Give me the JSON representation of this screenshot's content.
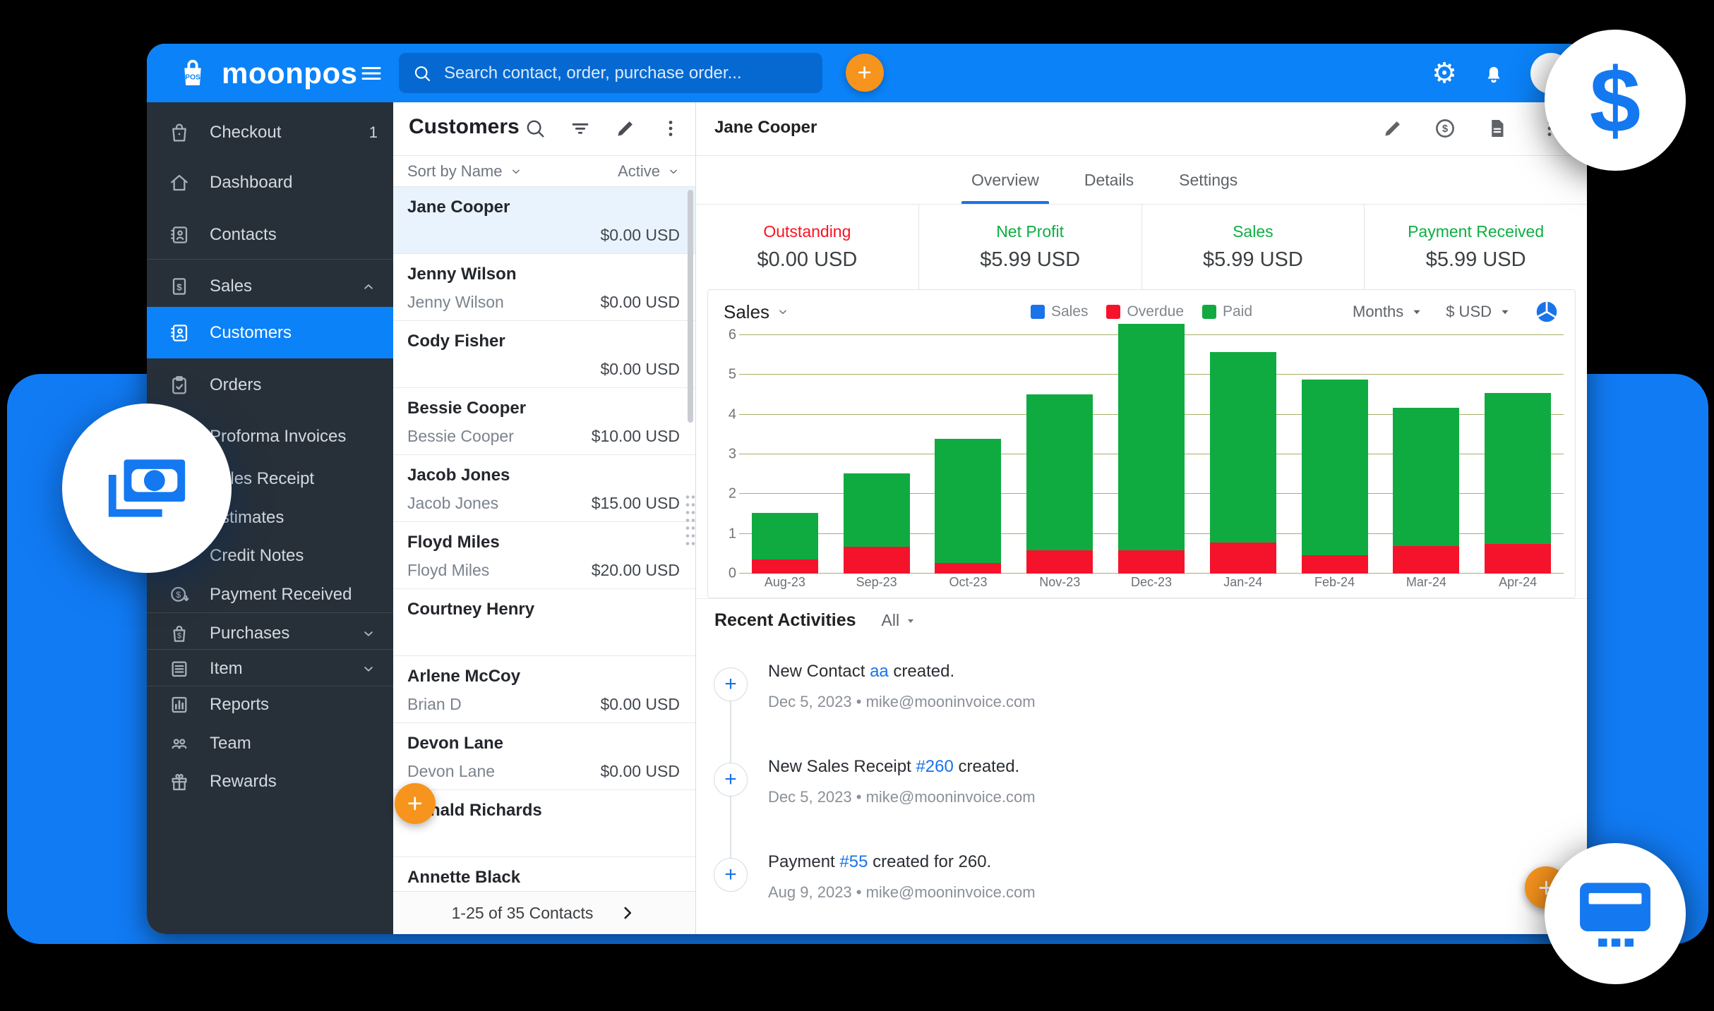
{
  "colors": {
    "topbar_blue": "#0b82f7",
    "search_field_blue": "#0669d2",
    "decor_blue": "#117bf4",
    "icon_blue": "#1478f0",
    "sidebar_bg": "#273039",
    "active_item_blue": "#0b82f7",
    "selected_row_blue": "#e8f3fd",
    "orange_accent": "#f7941d",
    "link_blue": "#1a73e8",
    "stat_red": "#fb121f",
    "stat_green": "#0caf42",
    "bar_red": "#f5132b",
    "bar_green": "#0fab41",
    "gridline_olive": "#a9af68"
  },
  "topbar": {
    "brand": "moonpos",
    "brand_badge": "POS",
    "search_placeholder": "Search contact, order, purchase order..."
  },
  "sidebar": {
    "items": [
      {
        "label": "Checkout",
        "icon": "bag",
        "badge": "1"
      },
      {
        "label": "Dashboard",
        "icon": "home"
      },
      {
        "label": "Contacts",
        "icon": "address-book"
      },
      {
        "label": "Sales",
        "icon": "receipt-dollar",
        "chevron": "up"
      },
      {
        "label": "Customers",
        "icon": "address-book",
        "active": true
      },
      {
        "label": "Orders",
        "icon": "clipboard-check"
      },
      {
        "label": "Proforma Invoices",
        "icon": "document"
      },
      {
        "label": "Sales Receipt",
        "icon": "document"
      },
      {
        "label": "Estimates",
        "icon": "document"
      },
      {
        "label": "Credit Notes",
        "icon": "credit-note"
      },
      {
        "label": "Payment Received",
        "icon": "payment-received"
      },
      {
        "label": "Purchases",
        "icon": "bag-dollar",
        "chevron": "down"
      },
      {
        "label": "Item",
        "icon": "list",
        "chevron": "down"
      },
      {
        "label": "Reports",
        "icon": "bar-chart"
      },
      {
        "label": "Team",
        "icon": "people"
      },
      {
        "label": "Rewards",
        "icon": "gift"
      }
    ]
  },
  "customers_panel": {
    "title": "Customers",
    "sort_label": "Sort by Name",
    "status_filter": "Active",
    "rows": [
      {
        "name": "Jane Cooper",
        "subtitle": "",
        "amount": "$0.00 USD",
        "selected": true
      },
      {
        "name": "Jenny Wilson",
        "subtitle": "Jenny Wilson",
        "amount": "$0.00 USD"
      },
      {
        "name": "Cody Fisher",
        "subtitle": "",
        "amount": "$0.00 USD"
      },
      {
        "name": "Bessie Cooper",
        "subtitle": "Bessie Cooper",
        "amount": "$10.00 USD"
      },
      {
        "name": "Jacob Jones",
        "subtitle": "Jacob Jones",
        "amount": "$15.00 USD"
      },
      {
        "name": "Floyd Miles",
        "subtitle": "Floyd Miles",
        "amount": "$20.00 USD"
      },
      {
        "name": "Courtney Henry",
        "subtitle": "",
        "amount": ""
      },
      {
        "name": "Arlene McCoy",
        "subtitle": "Brian D",
        "amount": "$0.00 USD"
      },
      {
        "name": "Devon Lane",
        "subtitle": "Devon Lane",
        "amount": "$0.00 USD"
      },
      {
        "name": "Ronald Richards",
        "subtitle": "",
        "amount": ""
      },
      {
        "name": "Annette Black",
        "subtitle": "",
        "amount": ""
      }
    ],
    "footer": {
      "range_text": "1-25 of 35 Contacts"
    }
  },
  "detail": {
    "title": "Jane Cooper",
    "tabs": [
      {
        "label": "Overview",
        "active": true
      },
      {
        "label": "Details"
      },
      {
        "label": "Settings"
      }
    ],
    "stats": [
      {
        "label": "Outstanding",
        "value": "$0.00 USD",
        "color": "#fb121f"
      },
      {
        "label": "Net Profit",
        "value": "$5.99 USD",
        "color": "#0caf42"
      },
      {
        "label": "Sales",
        "value": "$5.99 USD",
        "color": "#0caf42"
      },
      {
        "label": "Payment Received",
        "value": "$5.99 USD",
        "color": "#0caf42"
      }
    ],
    "chart_controls": {
      "metric": "Sales",
      "period": "Months",
      "currency": "$ USD"
    },
    "activities": {
      "title": "Recent Activities",
      "filter": "All",
      "items": [
        {
          "parts": [
            {
              "text": "New Contact "
            },
            {
              "text": "aa",
              "link": true
            },
            {
              "text": " created."
            }
          ],
          "meta": "Dec 5, 2023 • mike@mooninvoice.com"
        },
        {
          "parts": [
            {
              "text": "New Sales Receipt "
            },
            {
              "text": "#260",
              "link": true
            },
            {
              "text": " created."
            }
          ],
          "meta": "Dec 5, 2023 • mike@mooninvoice.com"
        },
        {
          "parts": [
            {
              "text": "Payment "
            },
            {
              "text": "#55",
              "link": true
            },
            {
              "text": " created for 260."
            }
          ],
          "meta": "Aug 9, 2023 • mike@mooninvoice.com"
        }
      ]
    }
  },
  "chart_data": {
    "type": "bar",
    "stacked": true,
    "title": "Sales",
    "categories": [
      "Aug-23",
      "Sep-23",
      "Oct-23",
      "Nov-23",
      "Dec-23",
      "Jan-24",
      "Feb-24",
      "Mar-24",
      "Apr-24"
    ],
    "series": [
      {
        "name": "Overdue",
        "color": "#f5132b",
        "values": [
          0.36,
          0.67,
          0.26,
          0.58,
          0.59,
          0.78,
          0.46,
          0.69,
          0.75
        ]
      },
      {
        "name": "Paid",
        "color": "#0fab41",
        "values": [
          1.17,
          1.85,
          3.13,
          3.93,
          5.69,
          4.79,
          4.43,
          3.49,
          3.79
        ]
      }
    ],
    "legend": [
      {
        "name": "Sales",
        "color": "#1a73e8"
      },
      {
        "name": "Overdue",
        "color": "#f5132b"
      },
      {
        "name": "Paid",
        "color": "#0fab41"
      }
    ],
    "ylim": [
      0,
      6
    ],
    "yticks": [
      0,
      1,
      2,
      3,
      4,
      5,
      6
    ],
    "grid": true,
    "legend_position": "top-center",
    "currency": "USD"
  }
}
